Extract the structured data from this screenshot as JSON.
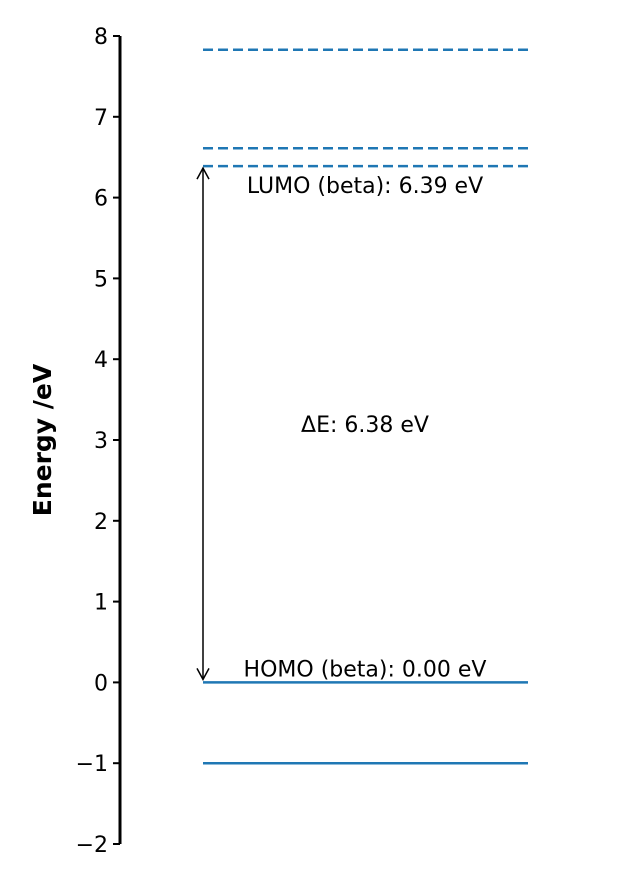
{
  "chart_data": {
    "type": "energy-level-diagram",
    "ylabel": "Energy /eV",
    "ylim": [
      -2,
      8
    ],
    "yticks": [
      8,
      7,
      6,
      5,
      4,
      3,
      2,
      1,
      0,
      -1,
      -2
    ],
    "ytick_labels": [
      "8",
      "7",
      "6",
      "5",
      "4",
      "3",
      "2",
      "1",
      "0",
      "−1",
      "−2"
    ],
    "grid": false,
    "series": [
      {
        "kind": "occupied",
        "line_style": "solid",
        "color": "#1f77b4",
        "levels": [
          0.0,
          -1.0
        ]
      },
      {
        "kind": "virtual",
        "line_style": "dashed",
        "color": "#1f77b4",
        "levels": [
          6.39,
          6.61,
          7.83
        ]
      }
    ],
    "gap_arrow": {
      "from": 0.0,
      "to": 6.39,
      "color": "#000000"
    },
    "annotations": [
      {
        "id": "lumo",
        "text": "LUMO (beta): 6.39 eV",
        "y": 6.39
      },
      {
        "id": "homo",
        "text": "HOMO (beta): 0.00 eV",
        "y": 0.0
      },
      {
        "id": "gap",
        "text": "ΔE: 6.38 eV",
        "y": 3.2
      }
    ]
  }
}
